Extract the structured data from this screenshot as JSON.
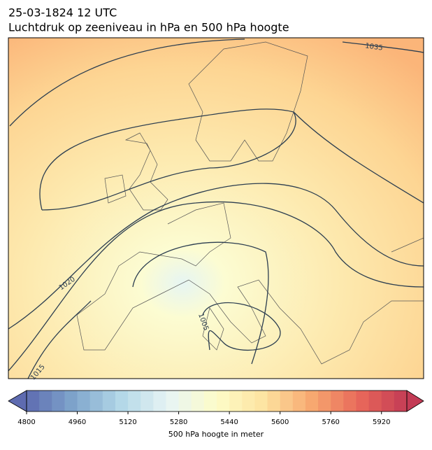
{
  "header": {
    "title": "25-03-1824 12 UTC",
    "subtitle": "Luchtdruk op zeeniveau in hPa en 500 hPa hoogte"
  },
  "contour_labels": [
    "1035",
    "1020",
    "1005",
    "1015"
  ],
  "colorbar": {
    "label": "500 hPa hoogte in meter",
    "lim": [
      4800,
      6000
    ],
    "ticks": [
      4800,
      4960,
      5120,
      5280,
      5440,
      5600,
      5760,
      5920
    ],
    "colors": [
      "#5e6bb0",
      "#7fa6cc",
      "#b4d8e8",
      "#e8f5f4",
      "#fdfcc8",
      "#fde3a0",
      "#f7a870",
      "#e8685a",
      "#c33b55"
    ]
  }
}
